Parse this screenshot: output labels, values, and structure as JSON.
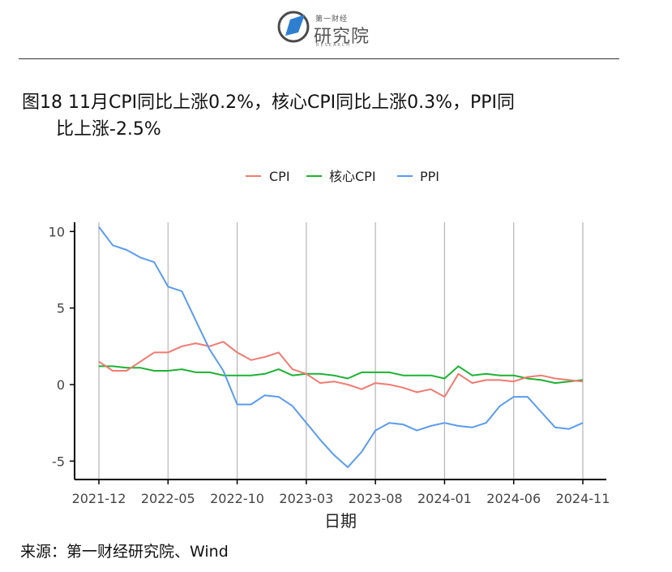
{
  "header": {
    "logo_small": "第一财经",
    "logo_big": "研究院",
    "logo_en": "RESEARCH"
  },
  "title": {
    "line1": "图18 11月CPI同比上涨0.2%，核心CPI同比上涨0.3%，PPI同",
    "line2": "比上涨-2.5%"
  },
  "source": "来源：第一财经研究院、Wind",
  "chart_data": {
    "type": "line",
    "x_months": [
      "2021-12",
      "2022-01",
      "2022-02",
      "2022-03",
      "2022-04",
      "2022-05",
      "2022-06",
      "2022-07",
      "2022-08",
      "2022-09",
      "2022-10",
      "2022-11",
      "2022-12",
      "2023-01",
      "2023-02",
      "2023-03",
      "2023-04",
      "2023-05",
      "2023-06",
      "2023-07",
      "2023-08",
      "2023-09",
      "2023-10",
      "2023-11",
      "2023-12",
      "2024-01",
      "2024-02",
      "2024-03",
      "2024-04",
      "2024-05",
      "2024-06",
      "2024-07",
      "2024-08",
      "2024-09",
      "2024-10",
      "2024-11"
    ],
    "x_tick_labels": [
      "2021-12",
      "2022-05",
      "2022-10",
      "2023-03",
      "2023-08",
      "2024-01",
      "2024-06",
      "2024-11"
    ],
    "x_tick_index": [
      0,
      5,
      10,
      15,
      20,
      25,
      30,
      35
    ],
    "xlabel": "日期",
    "ylabel": "",
    "ylim": [
      -6.2,
      10.6
    ],
    "y_ticks": [
      10,
      5,
      0,
      -5
    ],
    "legend_position": "top",
    "series": [
      {
        "name": "CPI",
        "color": "#F07B72",
        "values": [
          1.5,
          0.9,
          0.9,
          1.5,
          2.1,
          2.1,
          2.5,
          2.7,
          2.5,
          2.8,
          2.1,
          1.6,
          1.8,
          2.1,
          1.0,
          0.7,
          0.1,
          0.2,
          0.0,
          -0.3,
          0.1,
          0.0,
          -0.2,
          -0.5,
          -0.3,
          -0.8,
          0.7,
          0.1,
          0.3,
          0.3,
          0.2,
          0.5,
          0.6,
          0.4,
          0.3,
          0.2
        ]
      },
      {
        "name": "核心CPI",
        "color": "#1DB233",
        "values": [
          1.2,
          1.2,
          1.1,
          1.1,
          0.9,
          0.9,
          1.0,
          0.8,
          0.8,
          0.6,
          0.6,
          0.6,
          0.7,
          1.0,
          0.6,
          0.7,
          0.7,
          0.6,
          0.4,
          0.8,
          0.8,
          0.8,
          0.6,
          0.6,
          0.6,
          0.4,
          1.2,
          0.6,
          0.7,
          0.6,
          0.6,
          0.4,
          0.3,
          0.1,
          0.2,
          0.3
        ]
      },
      {
        "name": "PPI",
        "color": "#5B9BF0",
        "values": [
          10.3,
          9.1,
          8.8,
          8.3,
          8.0,
          6.4,
          6.1,
          4.2,
          2.3,
          0.9,
          -1.3,
          -1.3,
          -0.7,
          -0.8,
          -1.4,
          -2.5,
          -3.6,
          -4.6,
          -5.4,
          -4.4,
          -3.0,
          -2.5,
          -2.6,
          -3.0,
          -2.7,
          -2.5,
          -2.7,
          -2.8,
          -2.5,
          -1.4,
          -0.8,
          -0.8,
          -1.8,
          -2.8,
          -2.9,
          -2.5
        ]
      }
    ]
  }
}
